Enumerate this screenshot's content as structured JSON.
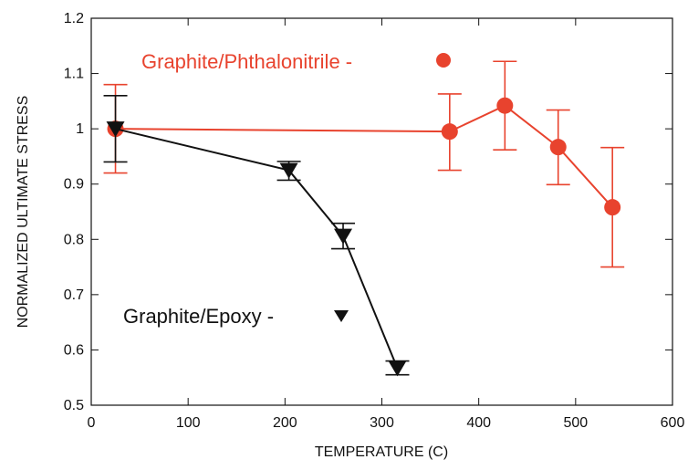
{
  "chart_data": {
    "type": "line",
    "xlabel": "TEMPERATURE (C)",
    "ylabel": "NORMALIZED ULTIMATE STRESS",
    "xlim": [
      0,
      600
    ],
    "ylim": [
      0.5,
      1.2
    ],
    "xticks": [
      0,
      100,
      200,
      300,
      400,
      500,
      600
    ],
    "yticks": [
      0.5,
      0.6,
      0.7,
      0.8,
      0.9,
      1,
      1.1,
      1.2
    ],
    "series": [
      {
        "name": "Graphite/Phthalonitrile -",
        "color": "#e8432e",
        "marker": "circle",
        "x": [
          25,
          370,
          427,
          482,
          538
        ],
        "y": [
          1.0,
          0.995,
          1.042,
          0.967,
          0.858
        ],
        "err_low": [
          0.92,
          0.925,
          0.962,
          0.899,
          0.75
        ],
        "err_high": [
          1.08,
          1.063,
          1.122,
          1.034,
          0.966
        ]
      },
      {
        "name": "Graphite/Epoxy -",
        "color": "#111111",
        "marker": "triangle-down",
        "x": [
          25,
          204,
          260,
          316
        ],
        "y": [
          1.0,
          0.925,
          0.806,
          0.567
        ],
        "err_low": [
          0.94,
          0.907,
          0.783,
          0.555
        ],
        "err_high": [
          1.06,
          0.941,
          0.829,
          0.58
        ]
      }
    ],
    "grid": false
  }
}
